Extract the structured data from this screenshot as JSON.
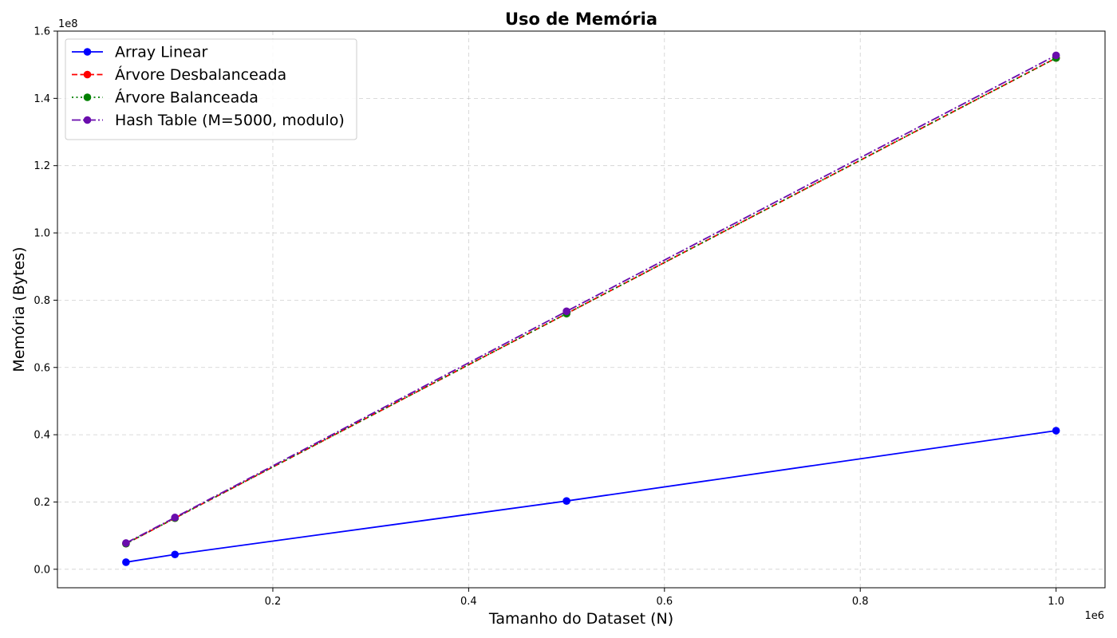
{
  "chart_data": {
    "type": "line",
    "title": "Uso de Memória",
    "xlabel": "Tamanho do Dataset (N)",
    "ylabel": "Memória (Bytes)",
    "x_exponent_label": "1e6",
    "y_exponent_label": "1e8",
    "x": [
      50000,
      100000,
      500000,
      1000000
    ],
    "xlim": [
      -20000,
      1050000
    ],
    "ylim": [
      -5500000,
      160000000
    ],
    "xticks": [
      200000,
      400000,
      600000,
      800000,
      1000000
    ],
    "xtick_labels": [
      "0.2",
      "0.4",
      "0.6",
      "0.8",
      "1.0"
    ],
    "yticks": [
      0,
      20000000,
      40000000,
      60000000,
      80000000,
      100000000,
      120000000,
      140000000,
      160000000
    ],
    "ytick_labels": [
      "0.0",
      "0.2",
      "0.4",
      "0.6",
      "0.8",
      "1.0",
      "1.2",
      "1.4",
      "1.6"
    ],
    "grid": true,
    "legend_position": "top-left",
    "series": [
      {
        "name": "Array Linear",
        "values": [
          2100000,
          4400000,
          20300000,
          41200000
        ],
        "color": "#0000ff",
        "dash": "solid"
      },
      {
        "name": "Árvore Desbalanceada",
        "values": [
          7600000,
          15200000,
          76000000,
          152000000
        ],
        "color": "#ff0000",
        "dash": "dashed"
      },
      {
        "name": "Árvore Balanceada",
        "values": [
          7600000,
          15200000,
          76000000,
          152000000
        ],
        "color": "#008000",
        "dash": "dotted"
      },
      {
        "name": "Hash Table (M=5000, modulo)",
        "values": [
          7800000,
          15400000,
          76700000,
          152800000
        ],
        "color": "#6a0dad",
        "dash": "dashdot"
      }
    ]
  }
}
